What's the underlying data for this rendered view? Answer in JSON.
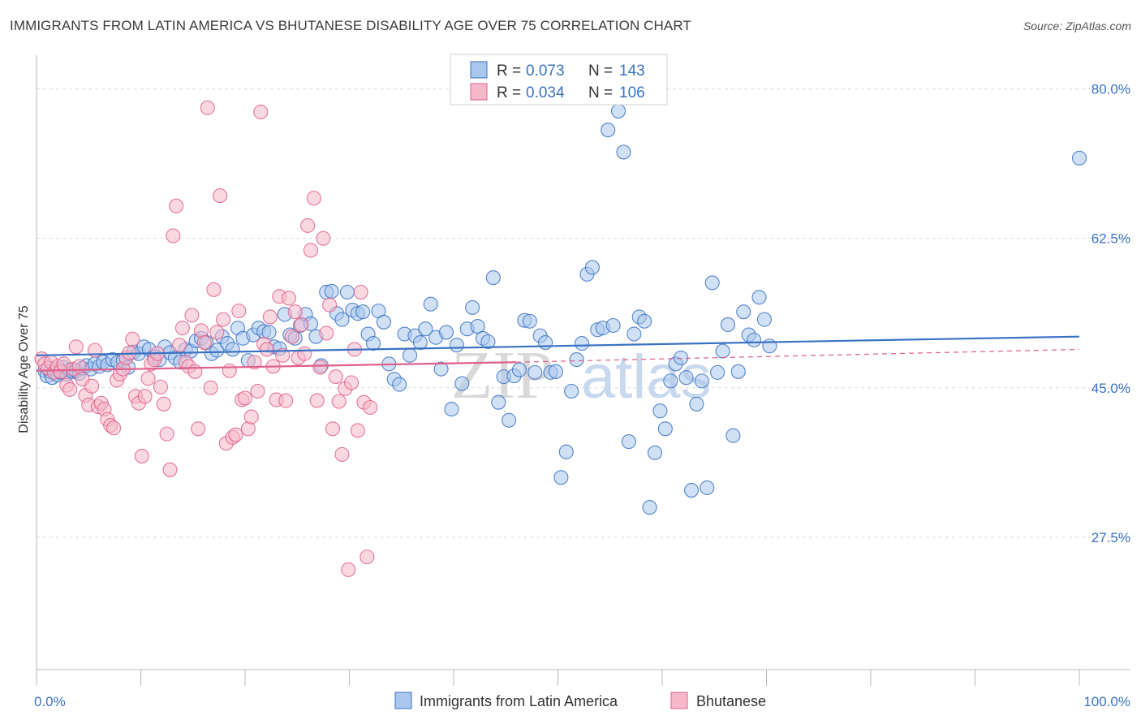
{
  "title": "IMMIGRANTS FROM LATIN AMERICA VS BHUTANESE DISABILITY AGE OVER 75 CORRELATION CHART",
  "source": "Source: ZipAtlas.com",
  "watermark": {
    "part1": "ZIP",
    "part2": "atlas"
  },
  "colors": {
    "blue": "#3a72c4",
    "blue_fill": "#a9c6ec",
    "pink": "#e0608a",
    "pink_fill": "#f5b8cb",
    "grid": "#d9d9d9"
  },
  "legend": {
    "r_label": "R =",
    "n_label": "N =",
    "series": [
      {
        "name": "Immigrants from Latin America",
        "r": "0.073",
        "n": "143"
      },
      {
        "name": "Bhutanese",
        "r": "0.034",
        "n": "106"
      }
    ]
  },
  "chart_data": {
    "type": "scatter",
    "title": "IMMIGRANTS FROM LATIN AMERICA VS BHUTANESE DISABILITY AGE OVER 75 CORRELATION CHART",
    "xlabel": "",
    "ylabel": "Disability Age Over 75",
    "xlim": [
      0,
      100
    ],
    "ylim": [
      12,
      83
    ],
    "x_tick_labels": [
      "0.0%",
      "100.0%"
    ],
    "y_ticks": [
      27.5,
      45.0,
      62.5,
      80.0
    ],
    "y_tick_labels": [
      "27.5%",
      "45.0%",
      "62.5%",
      "80.0%"
    ],
    "grid": true,
    "series": [
      {
        "name": "Immigrants from Latin America",
        "trend": {
          "x": [
            0,
            100
          ],
          "y": [
            48.8,
            51.0
          ],
          "style": "solid"
        },
        "points": [
          [
            0.8,
            47.0
          ],
          [
            1.0,
            46.4
          ],
          [
            1.3,
            46.9
          ],
          [
            1.5,
            46.2
          ],
          [
            1.8,
            47.2
          ],
          [
            2.0,
            46.5
          ],
          [
            2.3,
            46.8
          ],
          [
            2.6,
            47.4
          ],
          [
            2.9,
            46.6
          ],
          [
            3.2,
            47.1
          ],
          [
            3.5,
            46.9
          ],
          [
            3.8,
            47.0
          ],
          [
            4.1,
            46.7
          ],
          [
            4.4,
            47.3
          ],
          [
            4.8,
            47.6
          ],
          [
            5.2,
            47.2
          ],
          [
            5.6,
            47.8
          ],
          [
            6.0,
            47.5
          ],
          [
            6.4,
            48.0
          ],
          [
            6.8,
            47.7
          ],
          [
            7.3,
            48.3
          ],
          [
            7.8,
            48.0
          ],
          [
            8.3,
            48.2
          ],
          [
            8.8,
            47.4
          ],
          [
            9.3,
            49.2
          ],
          [
            9.8,
            49.0
          ],
          [
            10.3,
            49.8
          ],
          [
            10.8,
            49.5
          ],
          [
            11.3,
            48.6
          ],
          [
            11.8,
            48.3
          ],
          [
            12.3,
            49.8
          ],
          [
            12.8,
            49.1
          ],
          [
            13.3,
            48.5
          ],
          [
            13.8,
            48.0
          ],
          [
            14.3,
            49.5
          ],
          [
            14.8,
            49.3
          ],
          [
            15.3,
            50.5
          ],
          [
            15.8,
            50.8
          ],
          [
            16.3,
            50.3
          ],
          [
            16.8,
            49.0
          ],
          [
            17.3,
            49.4
          ],
          [
            17.8,
            51.0
          ],
          [
            18.3,
            50.2
          ],
          [
            18.8,
            49.5
          ],
          [
            19.3,
            52.0
          ],
          [
            19.8,
            50.8
          ],
          [
            20.3,
            48.2
          ],
          [
            20.8,
            51.2
          ],
          [
            21.3,
            52.0
          ],
          [
            21.8,
            51.6
          ],
          [
            22.3,
            51.5
          ],
          [
            22.8,
            49.8
          ],
          [
            23.3,
            49.6
          ],
          [
            23.8,
            53.6
          ],
          [
            24.3,
            51.2
          ],
          [
            24.8,
            50.8
          ],
          [
            25.3,
            52.3
          ],
          [
            25.8,
            53.6
          ],
          [
            26.3,
            52.5
          ],
          [
            26.8,
            51.0
          ],
          [
            27.3,
            47.6
          ],
          [
            27.8,
            56.2
          ],
          [
            28.3,
            56.3
          ],
          [
            28.8,
            53.7
          ],
          [
            29.3,
            53.0
          ],
          [
            29.8,
            56.2
          ],
          [
            30.3,
            54.1
          ],
          [
            30.8,
            53.7
          ],
          [
            31.3,
            53.9
          ],
          [
            31.8,
            51.3
          ],
          [
            32.3,
            50.2
          ],
          [
            32.8,
            54.0
          ],
          [
            33.3,
            52.7
          ],
          [
            33.8,
            47.8
          ],
          [
            34.3,
            46.0
          ],
          [
            34.8,
            45.4
          ],
          [
            35.3,
            51.3
          ],
          [
            35.8,
            48.8
          ],
          [
            36.3,
            51.1
          ],
          [
            36.8,
            50.3
          ],
          [
            37.3,
            51.9
          ],
          [
            37.8,
            54.8
          ],
          [
            38.3,
            50.9
          ],
          [
            38.8,
            47.2
          ],
          [
            39.3,
            51.5
          ],
          [
            39.8,
            42.5
          ],
          [
            40.3,
            50.0
          ],
          [
            40.8,
            45.5
          ],
          [
            41.3,
            51.9
          ],
          [
            41.8,
            54.4
          ],
          [
            42.3,
            52.2
          ],
          [
            42.8,
            50.8
          ],
          [
            43.3,
            50.4
          ],
          [
            43.8,
            57.9
          ],
          [
            44.3,
            43.3
          ],
          [
            44.8,
            46.3
          ],
          [
            45.3,
            41.2
          ],
          [
            45.8,
            46.4
          ],
          [
            46.3,
            47.1
          ],
          [
            46.8,
            52.9
          ],
          [
            47.3,
            52.8
          ],
          [
            47.8,
            46.8
          ],
          [
            48.3,
            51.1
          ],
          [
            48.8,
            50.3
          ],
          [
            49.3,
            46.8
          ],
          [
            49.8,
            46.9
          ],
          [
            50.3,
            34.5
          ],
          [
            50.8,
            37.5
          ],
          [
            51.3,
            44.6
          ],
          [
            51.8,
            48.3
          ],
          [
            52.3,
            50.2
          ],
          [
            52.8,
            58.3
          ],
          [
            53.3,
            59.1
          ],
          [
            53.8,
            51.8
          ],
          [
            54.3,
            52.0
          ],
          [
            54.8,
            75.2
          ],
          [
            55.3,
            52.3
          ],
          [
            55.8,
            77.4
          ],
          [
            56.3,
            72.6
          ],
          [
            56.8,
            38.7
          ],
          [
            57.3,
            51.3
          ],
          [
            57.8,
            53.3
          ],
          [
            58.3,
            52.8
          ],
          [
            58.8,
            31.0
          ],
          [
            59.3,
            37.4
          ],
          [
            59.8,
            42.3
          ],
          [
            60.3,
            40.2
          ],
          [
            60.8,
            45.8
          ],
          [
            61.3,
            47.8
          ],
          [
            61.8,
            48.5
          ],
          [
            62.3,
            46.2
          ],
          [
            62.8,
            33.0
          ],
          [
            63.3,
            43.1
          ],
          [
            63.8,
            45.8
          ],
          [
            64.3,
            33.3
          ],
          [
            64.8,
            57.3
          ],
          [
            65.3,
            46.8
          ],
          [
            65.8,
            49.3
          ],
          [
            66.3,
            52.4
          ],
          [
            66.8,
            39.4
          ],
          [
            67.3,
            46.9
          ],
          [
            67.8,
            53.9
          ],
          [
            68.3,
            51.2
          ],
          [
            68.8,
            50.6
          ],
          [
            69.3,
            55.6
          ],
          [
            69.8,
            53.0
          ],
          [
            70.3,
            49.9
          ],
          [
            100.0,
            71.9
          ]
        ]
      },
      {
        "name": "Bhutanese",
        "trend": {
          "x": [
            0,
            46
          ],
          "y": [
            47.0,
            48.0
          ],
          "style": "solid",
          "extension": {
            "x": [
              46,
              100
            ],
            "y": [
              48.0,
              49.5
            ],
            "style": "dashed"
          }
        },
        "points": [
          [
            0.5,
            48.4
          ],
          [
            0.8,
            47.8
          ],
          [
            1.1,
            47.3
          ],
          [
            1.4,
            48.0
          ],
          [
            1.7,
            46.8
          ],
          [
            2.0,
            47.5
          ],
          [
            2.3,
            46.9
          ],
          [
            2.6,
            47.8
          ],
          [
            2.9,
            45.3
          ],
          [
            3.2,
            44.8
          ],
          [
            3.5,
            47.2
          ],
          [
            3.8,
            49.8
          ],
          [
            4.1,
            47.5
          ],
          [
            4.4,
            46.0
          ],
          [
            4.7,
            44.1
          ],
          [
            5.0,
            43.0
          ],
          [
            5.3,
            45.2
          ],
          [
            5.6,
            49.4
          ],
          [
            5.9,
            42.8
          ],
          [
            6.2,
            43.2
          ],
          [
            6.5,
            42.5
          ],
          [
            6.8,
            41.3
          ],
          [
            7.1,
            40.6
          ],
          [
            7.4,
            40.3
          ],
          [
            7.7,
            45.9
          ],
          [
            8.0,
            46.6
          ],
          [
            8.3,
            47.2
          ],
          [
            8.6,
            48.5
          ],
          [
            8.9,
            49.1
          ],
          [
            9.2,
            50.7
          ],
          [
            9.5,
            44.0
          ],
          [
            9.8,
            43.2
          ],
          [
            10.1,
            37.0
          ],
          [
            10.4,
            44.0
          ],
          [
            10.7,
            46.1
          ],
          [
            11.0,
            47.8
          ],
          [
            11.3,
            48.3
          ],
          [
            11.6,
            49.0
          ],
          [
            11.9,
            45.1
          ],
          [
            12.2,
            43.1
          ],
          [
            12.5,
            39.6
          ],
          [
            12.8,
            35.4
          ],
          [
            13.1,
            62.8
          ],
          [
            13.4,
            66.3
          ],
          [
            13.7,
            50.0
          ],
          [
            14.0,
            52.0
          ],
          [
            14.3,
            48.0
          ],
          [
            14.6,
            47.5
          ],
          [
            14.9,
            53.5
          ],
          [
            15.2,
            46.9
          ],
          [
            15.5,
            40.2
          ],
          [
            15.8,
            51.7
          ],
          [
            16.1,
            50.3
          ],
          [
            16.4,
            77.8
          ],
          [
            16.7,
            45.0
          ],
          [
            17.0,
            56.5
          ],
          [
            17.3,
            51.5
          ],
          [
            17.6,
            67.5
          ],
          [
            17.9,
            53.0
          ],
          [
            18.2,
            38.5
          ],
          [
            18.5,
            47.0
          ],
          [
            18.8,
            39.2
          ],
          [
            19.1,
            39.5
          ],
          [
            19.4,
            54.0
          ],
          [
            19.7,
            43.6
          ],
          [
            20.0,
            43.8
          ],
          [
            20.3,
            40.2
          ],
          [
            20.6,
            41.6
          ],
          [
            20.9,
            48.0
          ],
          [
            21.2,
            44.6
          ],
          [
            21.5,
            77.3
          ],
          [
            21.8,
            50.1
          ],
          [
            22.1,
            49.5
          ],
          [
            22.4,
            53.3
          ],
          [
            22.7,
            47.5
          ],
          [
            23.0,
            43.6
          ],
          [
            23.3,
            55.7
          ],
          [
            23.6,
            48.8
          ],
          [
            23.9,
            43.5
          ],
          [
            24.2,
            55.5
          ],
          [
            24.5,
            51.0
          ],
          [
            24.8,
            53.9
          ],
          [
            25.1,
            48.5
          ],
          [
            25.4,
            52.4
          ],
          [
            25.7,
            49.0
          ],
          [
            26.0,
            64.0
          ],
          [
            26.3,
            61.1
          ],
          [
            26.6,
            67.2
          ],
          [
            26.9,
            43.5
          ],
          [
            27.2,
            47.4
          ],
          [
            27.5,
            62.5
          ],
          [
            27.8,
            51.4
          ],
          [
            28.1,
            54.7
          ],
          [
            28.4,
            40.2
          ],
          [
            28.7,
            46.3
          ],
          [
            29.0,
            43.4
          ],
          [
            29.3,
            37.2
          ],
          [
            29.6,
            44.9
          ],
          [
            29.9,
            23.7
          ],
          [
            30.2,
            45.6
          ],
          [
            30.5,
            49.5
          ],
          [
            30.8,
            40.0
          ],
          [
            31.1,
            56.2
          ],
          [
            31.4,
            43.3
          ],
          [
            31.7,
            25.2
          ],
          [
            32.0,
            42.7
          ]
        ]
      }
    ]
  }
}
